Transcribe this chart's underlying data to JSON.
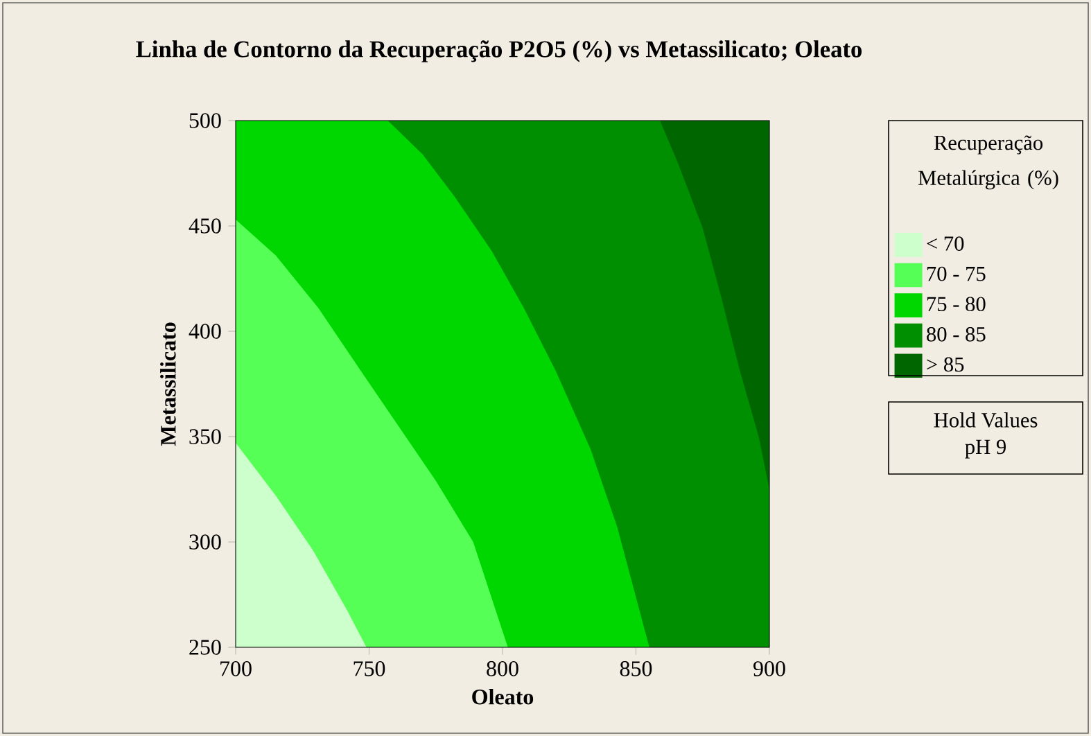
{
  "chart_data": {
    "type": "area",
    "title": "Linha de Contorno da Recuperação P2O5 (%) vs Metassilicato; Oleato",
    "xlabel": "Oleato",
    "ylabel": "Metassilicato",
    "legend_title": "Recuperação Metalúrgica (%)",
    "legend": "right",
    "xlim": [
      700,
      900
    ],
    "ylim": [
      250,
      500
    ],
    "xticks": [
      700,
      750,
      800,
      850,
      900
    ],
    "yticks": [
      250,
      300,
      350,
      400,
      450,
      500
    ],
    "annotations": [
      "Hold Values",
      "pH 9"
    ],
    "series": [
      {
        "name": "> 85",
        "color": "#006600",
        "x": [
          859,
          900
        ],
        "values": [
          500,
          500
        ]
      },
      {
        "name": "80 - 85",
        "color": "#008f00",
        "x": [
          757,
          859,
          866,
          875,
          882,
          889,
          896,
          900
        ],
        "values": [
          500,
          500,
          479,
          449,
          416,
          381,
          350,
          325
        ]
      },
      {
        "name": "75 - 80",
        "color": "#00d700",
        "x": [
          700,
          757,
          770,
          782,
          796,
          808,
          820,
          833,
          843,
          855
        ],
        "values": [
          500,
          500,
          484,
          464,
          438,
          411,
          381,
          344,
          307,
          250
        ]
      },
      {
        "name": "70 - 75",
        "color": "#55ff55",
        "x": [
          700,
          715,
          731,
          747,
          761,
          775,
          789,
          802
        ],
        "values": [
          453,
          436,
          411,
          381,
          355,
          329,
          300,
          250
        ]
      },
      {
        "name": "< 70",
        "color": "#ccffcc",
        "x": [
          700,
          715,
          729,
          742,
          749
        ],
        "values": [
          347,
          322,
          296,
          267,
          250
        ]
      }
    ]
  }
}
